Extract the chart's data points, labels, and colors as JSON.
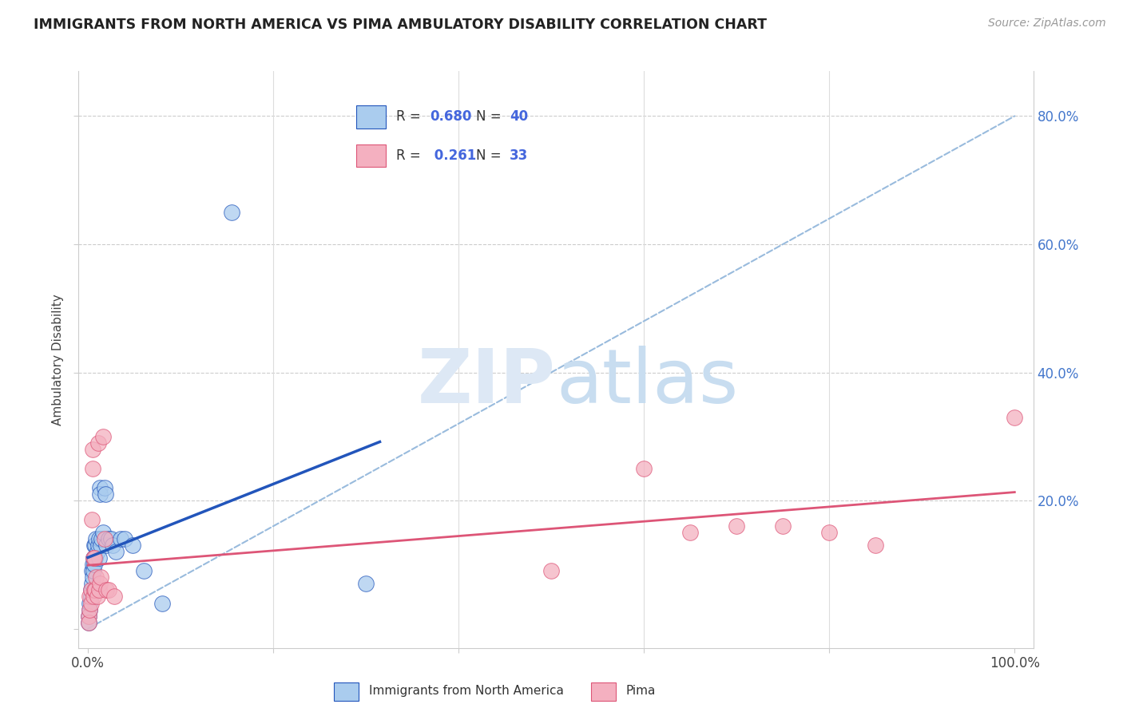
{
  "title": "IMMIGRANTS FROM NORTH AMERICA VS PIMA AMBULATORY DISABILITY CORRELATION CHART",
  "source": "Source: ZipAtlas.com",
  "ylabel": "Ambulatory Disability",
  "legend_label1": "Immigrants from North America",
  "legend_label2": "Pima",
  "r1": 0.68,
  "n1": 40,
  "r2": 0.261,
  "n2": 33,
  "blue_color": "#aaccee",
  "pink_color": "#f4b0c0",
  "blue_line_color": "#2255bb",
  "pink_line_color": "#dd5577",
  "dashed_line_color": "#99bbdd",
  "blue_points": [
    [
      0.001,
      0.02
    ],
    [
      0.001,
      0.01
    ],
    [
      0.002,
      0.03
    ],
    [
      0.002,
      0.04
    ],
    [
      0.003,
      0.05
    ],
    [
      0.003,
      0.06
    ],
    [
      0.004,
      0.09
    ],
    [
      0.004,
      0.07
    ],
    [
      0.005,
      0.1
    ],
    [
      0.005,
      0.08
    ],
    [
      0.006,
      0.11
    ],
    [
      0.006,
      0.09
    ],
    [
      0.007,
      0.13
    ],
    [
      0.007,
      0.1
    ],
    [
      0.008,
      0.13
    ],
    [
      0.008,
      0.11
    ],
    [
      0.009,
      0.14
    ],
    [
      0.01,
      0.12
    ],
    [
      0.011,
      0.13
    ],
    [
      0.012,
      0.14
    ],
    [
      0.012,
      0.11
    ],
    [
      0.013,
      0.22
    ],
    [
      0.013,
      0.21
    ],
    [
      0.014,
      0.13
    ],
    [
      0.015,
      0.14
    ],
    [
      0.016,
      0.15
    ],
    [
      0.018,
      0.22
    ],
    [
      0.019,
      0.21
    ],
    [
      0.02,
      0.13
    ],
    [
      0.022,
      0.14
    ],
    [
      0.025,
      0.14
    ],
    [
      0.027,
      0.13
    ],
    [
      0.03,
      0.12
    ],
    [
      0.035,
      0.14
    ],
    [
      0.04,
      0.14
    ],
    [
      0.048,
      0.13
    ],
    [
      0.06,
      0.09
    ],
    [
      0.08,
      0.04
    ],
    [
      0.155,
      0.65
    ],
    [
      0.3,
      0.07
    ]
  ],
  "pink_points": [
    [
      0.001,
      0.02
    ],
    [
      0.001,
      0.01
    ],
    [
      0.002,
      0.03
    ],
    [
      0.002,
      0.05
    ],
    [
      0.003,
      0.04
    ],
    [
      0.003,
      0.06
    ],
    [
      0.004,
      0.17
    ],
    [
      0.005,
      0.28
    ],
    [
      0.005,
      0.25
    ],
    [
      0.006,
      0.11
    ],
    [
      0.006,
      0.05
    ],
    [
      0.007,
      0.11
    ],
    [
      0.007,
      0.06
    ],
    [
      0.008,
      0.06
    ],
    [
      0.009,
      0.08
    ],
    [
      0.01,
      0.05
    ],
    [
      0.011,
      0.29
    ],
    [
      0.012,
      0.06
    ],
    [
      0.013,
      0.07
    ],
    [
      0.014,
      0.08
    ],
    [
      0.016,
      0.3
    ],
    [
      0.018,
      0.14
    ],
    [
      0.02,
      0.06
    ],
    [
      0.022,
      0.06
    ],
    [
      0.028,
      0.05
    ],
    [
      0.5,
      0.09
    ],
    [
      0.6,
      0.25
    ],
    [
      0.65,
      0.15
    ],
    [
      0.7,
      0.16
    ],
    [
      0.75,
      0.16
    ],
    [
      0.8,
      0.15
    ],
    [
      0.85,
      0.13
    ],
    [
      1.0,
      0.33
    ]
  ]
}
